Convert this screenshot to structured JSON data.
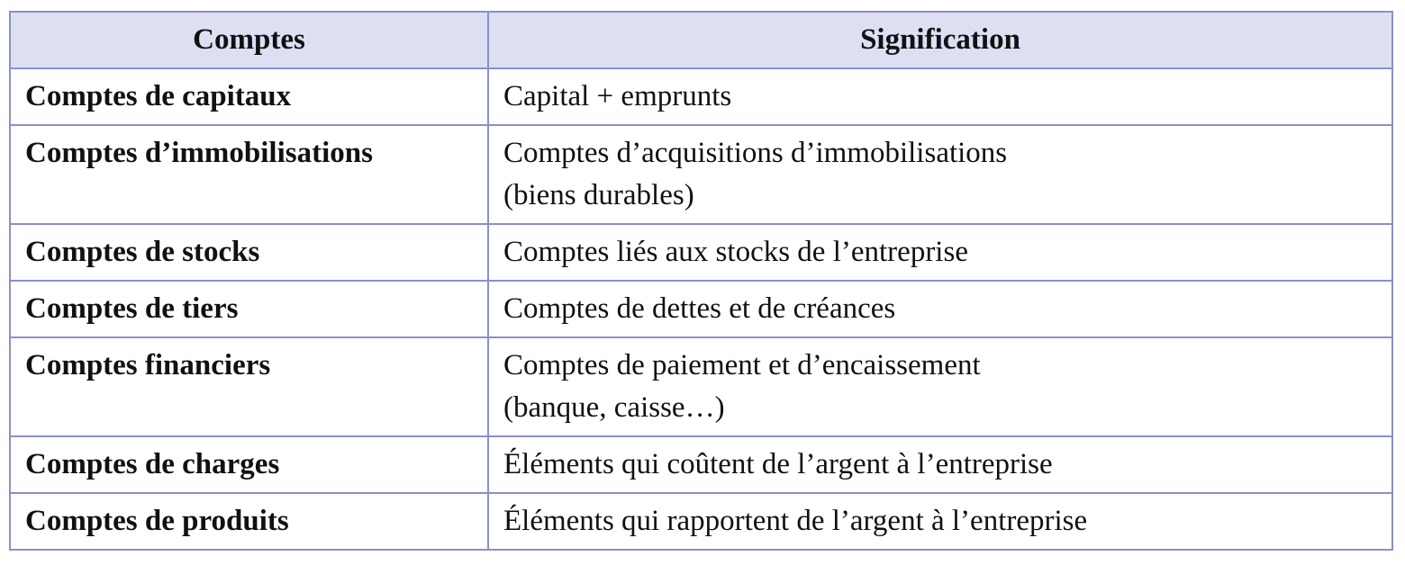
{
  "table": {
    "headers": [
      "Comptes",
      "Signification"
    ],
    "rows": [
      {
        "compte": "Comptes de capitaux",
        "signification": [
          "Capital + emprunts"
        ]
      },
      {
        "compte": "Comptes d’immobilisations",
        "signification": [
          "Comptes d’acquisitions d’immobilisations",
          "(biens durables)"
        ]
      },
      {
        "compte": "Comptes de stocks",
        "signification": [
          "Comptes liés aux stocks de l’entreprise"
        ]
      },
      {
        "compte": "Comptes de tiers",
        "signification": [
          "Comptes de dettes et de créances"
        ]
      },
      {
        "compte": "Comptes financiers",
        "signification": [
          "Comptes de paiement et d’encaissement",
          "(banque, caisse…)"
        ]
      },
      {
        "compte": "Comptes de charges",
        "signification": [
          "Éléments qui coûtent de l’argent à l’entreprise"
        ]
      },
      {
        "compte": "Comptes de produits",
        "signification": [
          "Éléments qui rapportent de l’argent à l’entreprise"
        ]
      }
    ],
    "colors": {
      "header_bg": "#dde0f3",
      "border": "#8a90cc"
    }
  }
}
